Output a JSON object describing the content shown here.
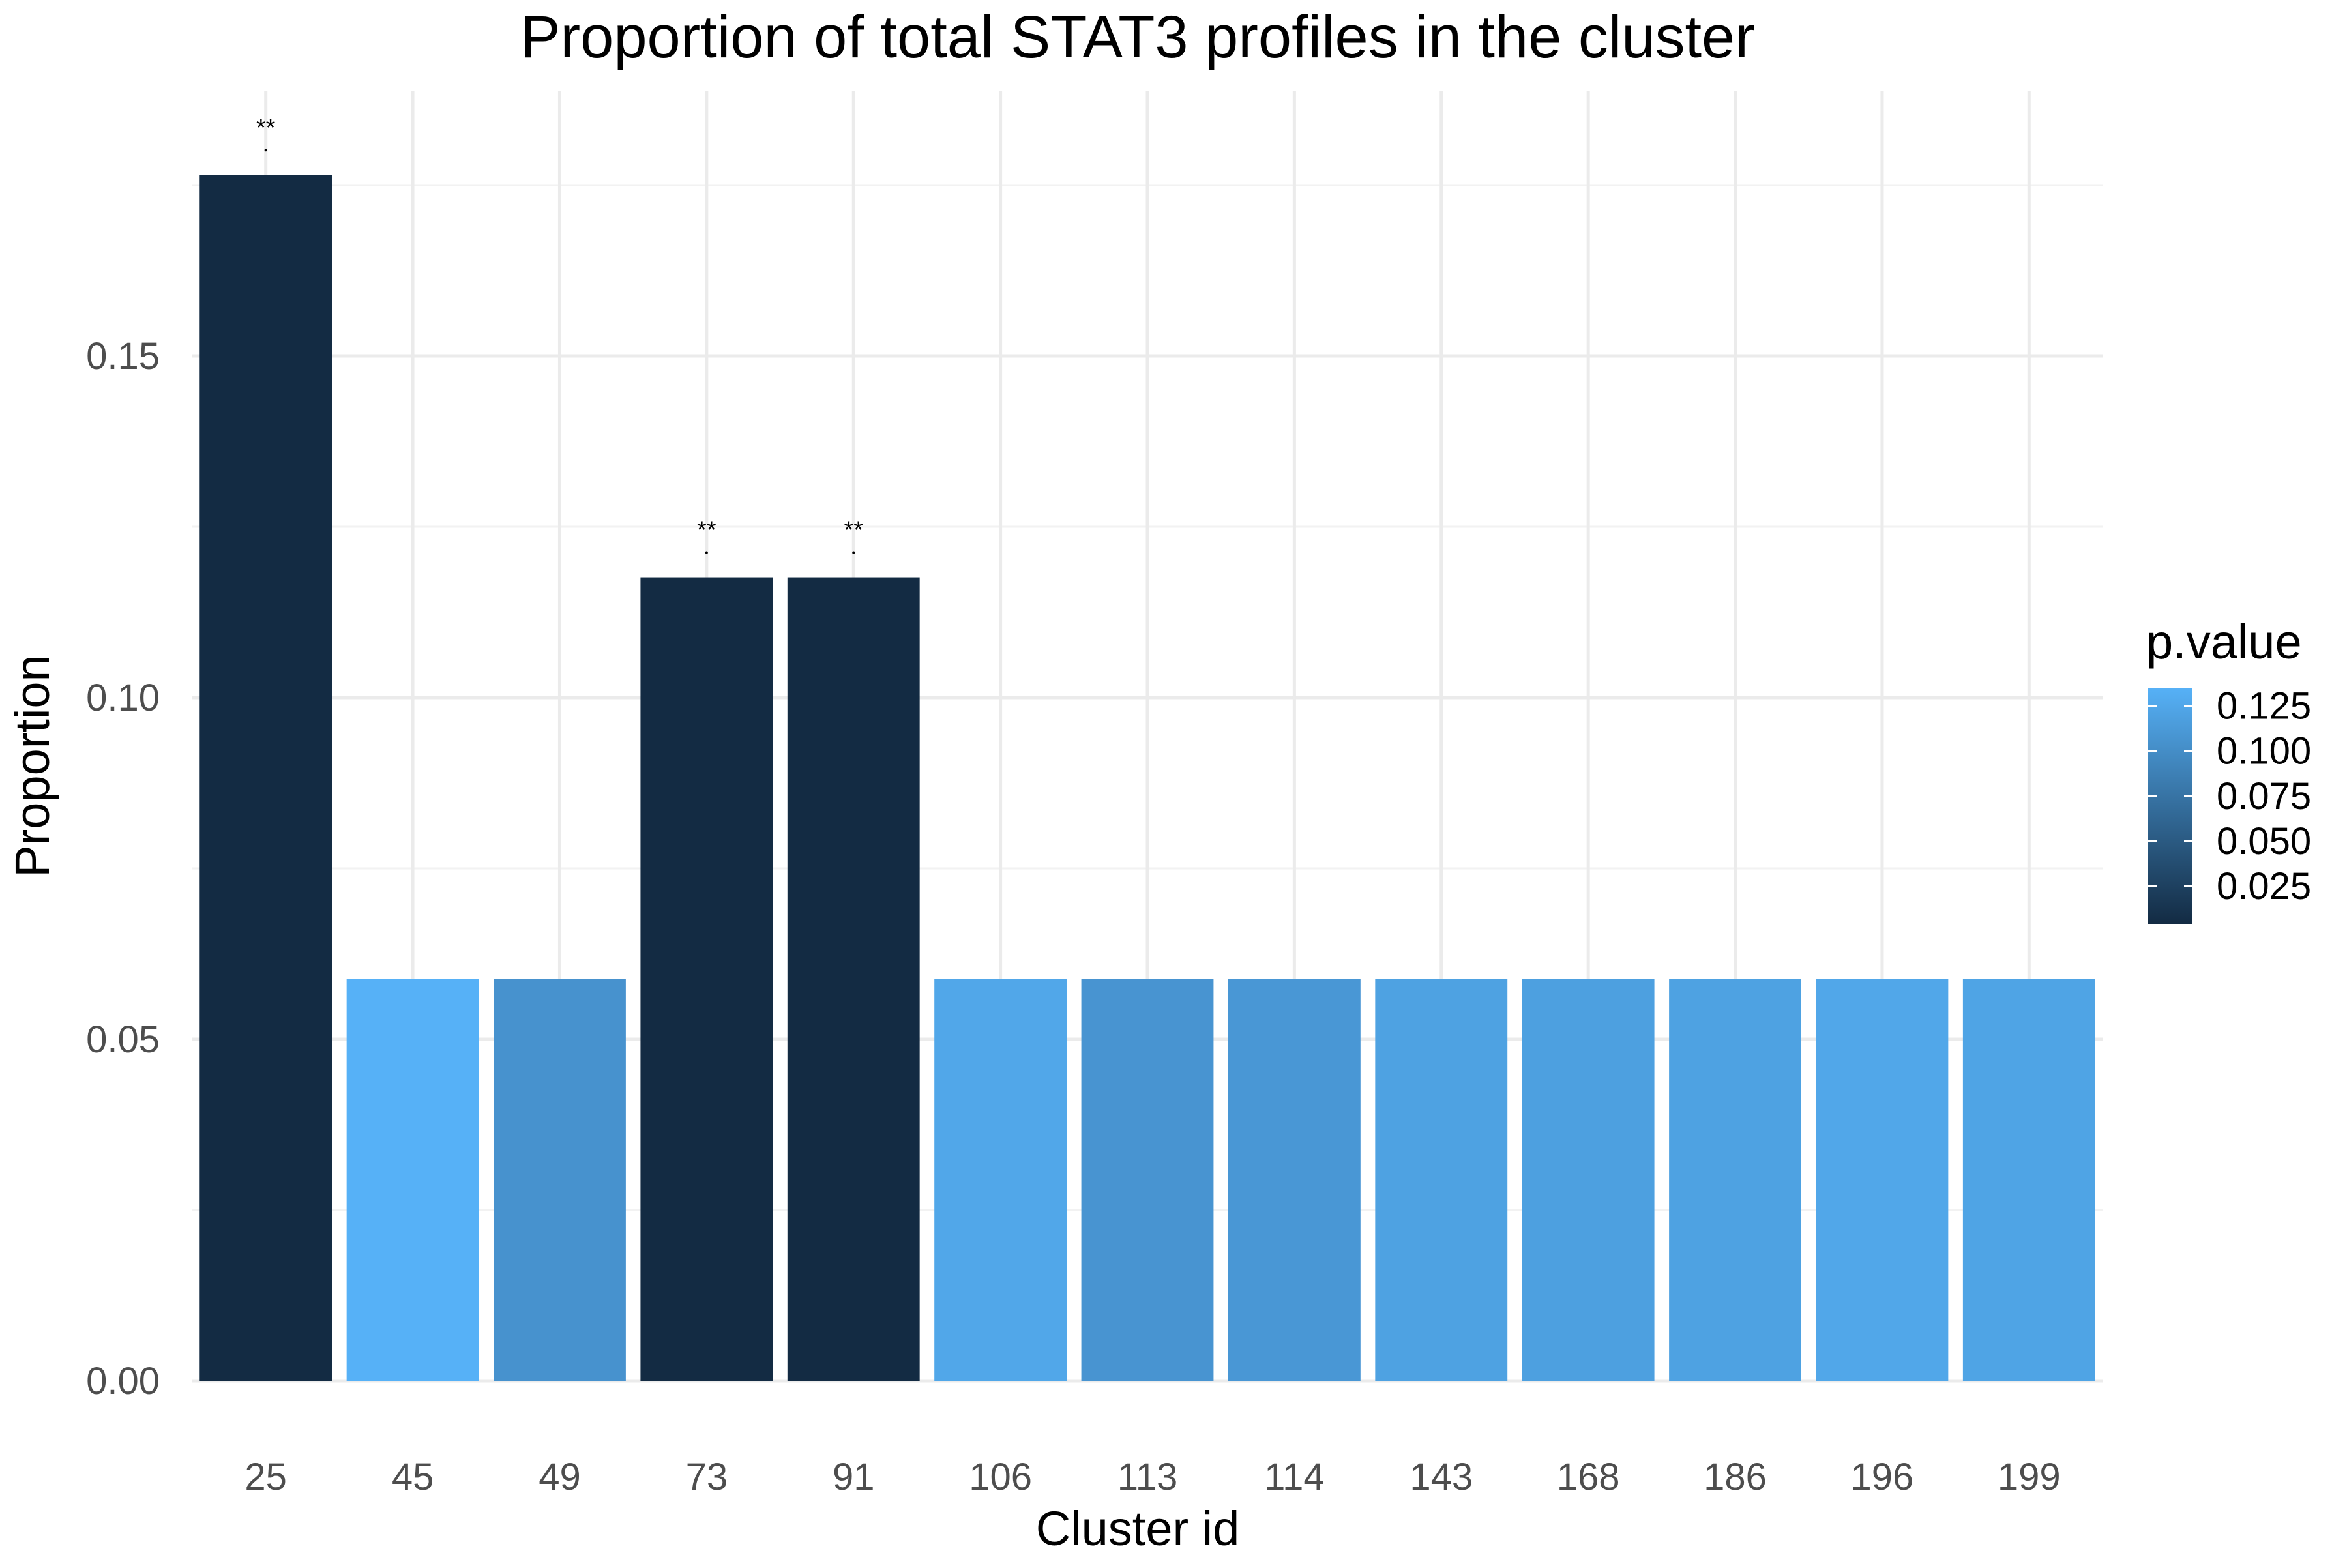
{
  "chart_data": {
    "type": "bar",
    "title": "Proportion of total STAT3 profiles in the cluster",
    "xlabel": "Cluster id",
    "ylabel": "Proportion",
    "categories": [
      "25",
      "45",
      "49",
      "73",
      "91",
      "106",
      "113",
      "114",
      "143",
      "168",
      "186",
      "196",
      "199"
    ],
    "values": [
      0.1765,
      0.0588,
      0.0588,
      0.1176,
      0.1176,
      0.0588,
      0.0588,
      0.0588,
      0.0588,
      0.0588,
      0.0588,
      0.0588,
      0.0588
    ],
    "p_values": [
      0.004,
      0.135,
      0.105,
      0.004,
      0.004,
      0.125,
      0.107,
      0.11,
      0.12,
      0.118,
      0.12,
      0.125,
      0.122
    ],
    "annotations": [
      "**",
      "",
      "",
      "**",
      "**",
      "",
      "",
      "",
      "",
      "",
      "",
      "",
      ""
    ],
    "ylim": [
      0,
      0.18
    ],
    "yticks": [
      0.0,
      0.05,
      0.1,
      0.15
    ],
    "ytick_labels": [
      "0.00",
      "0.05",
      "0.10",
      "0.15"
    ],
    "grid": true,
    "legend": {
      "title": "p.value",
      "placement": "right",
      "type": "colorbar",
      "range": [
        0.004,
        0.135
      ],
      "ticks": [
        0.025,
        0.05,
        0.075,
        0.1,
        0.125
      ],
      "tick_labels": [
        "0.025",
        "0.050",
        "0.075",
        "0.100",
        "0.125"
      ],
      "low_color": "#132B43",
      "high_color": "#56B1F7"
    }
  }
}
